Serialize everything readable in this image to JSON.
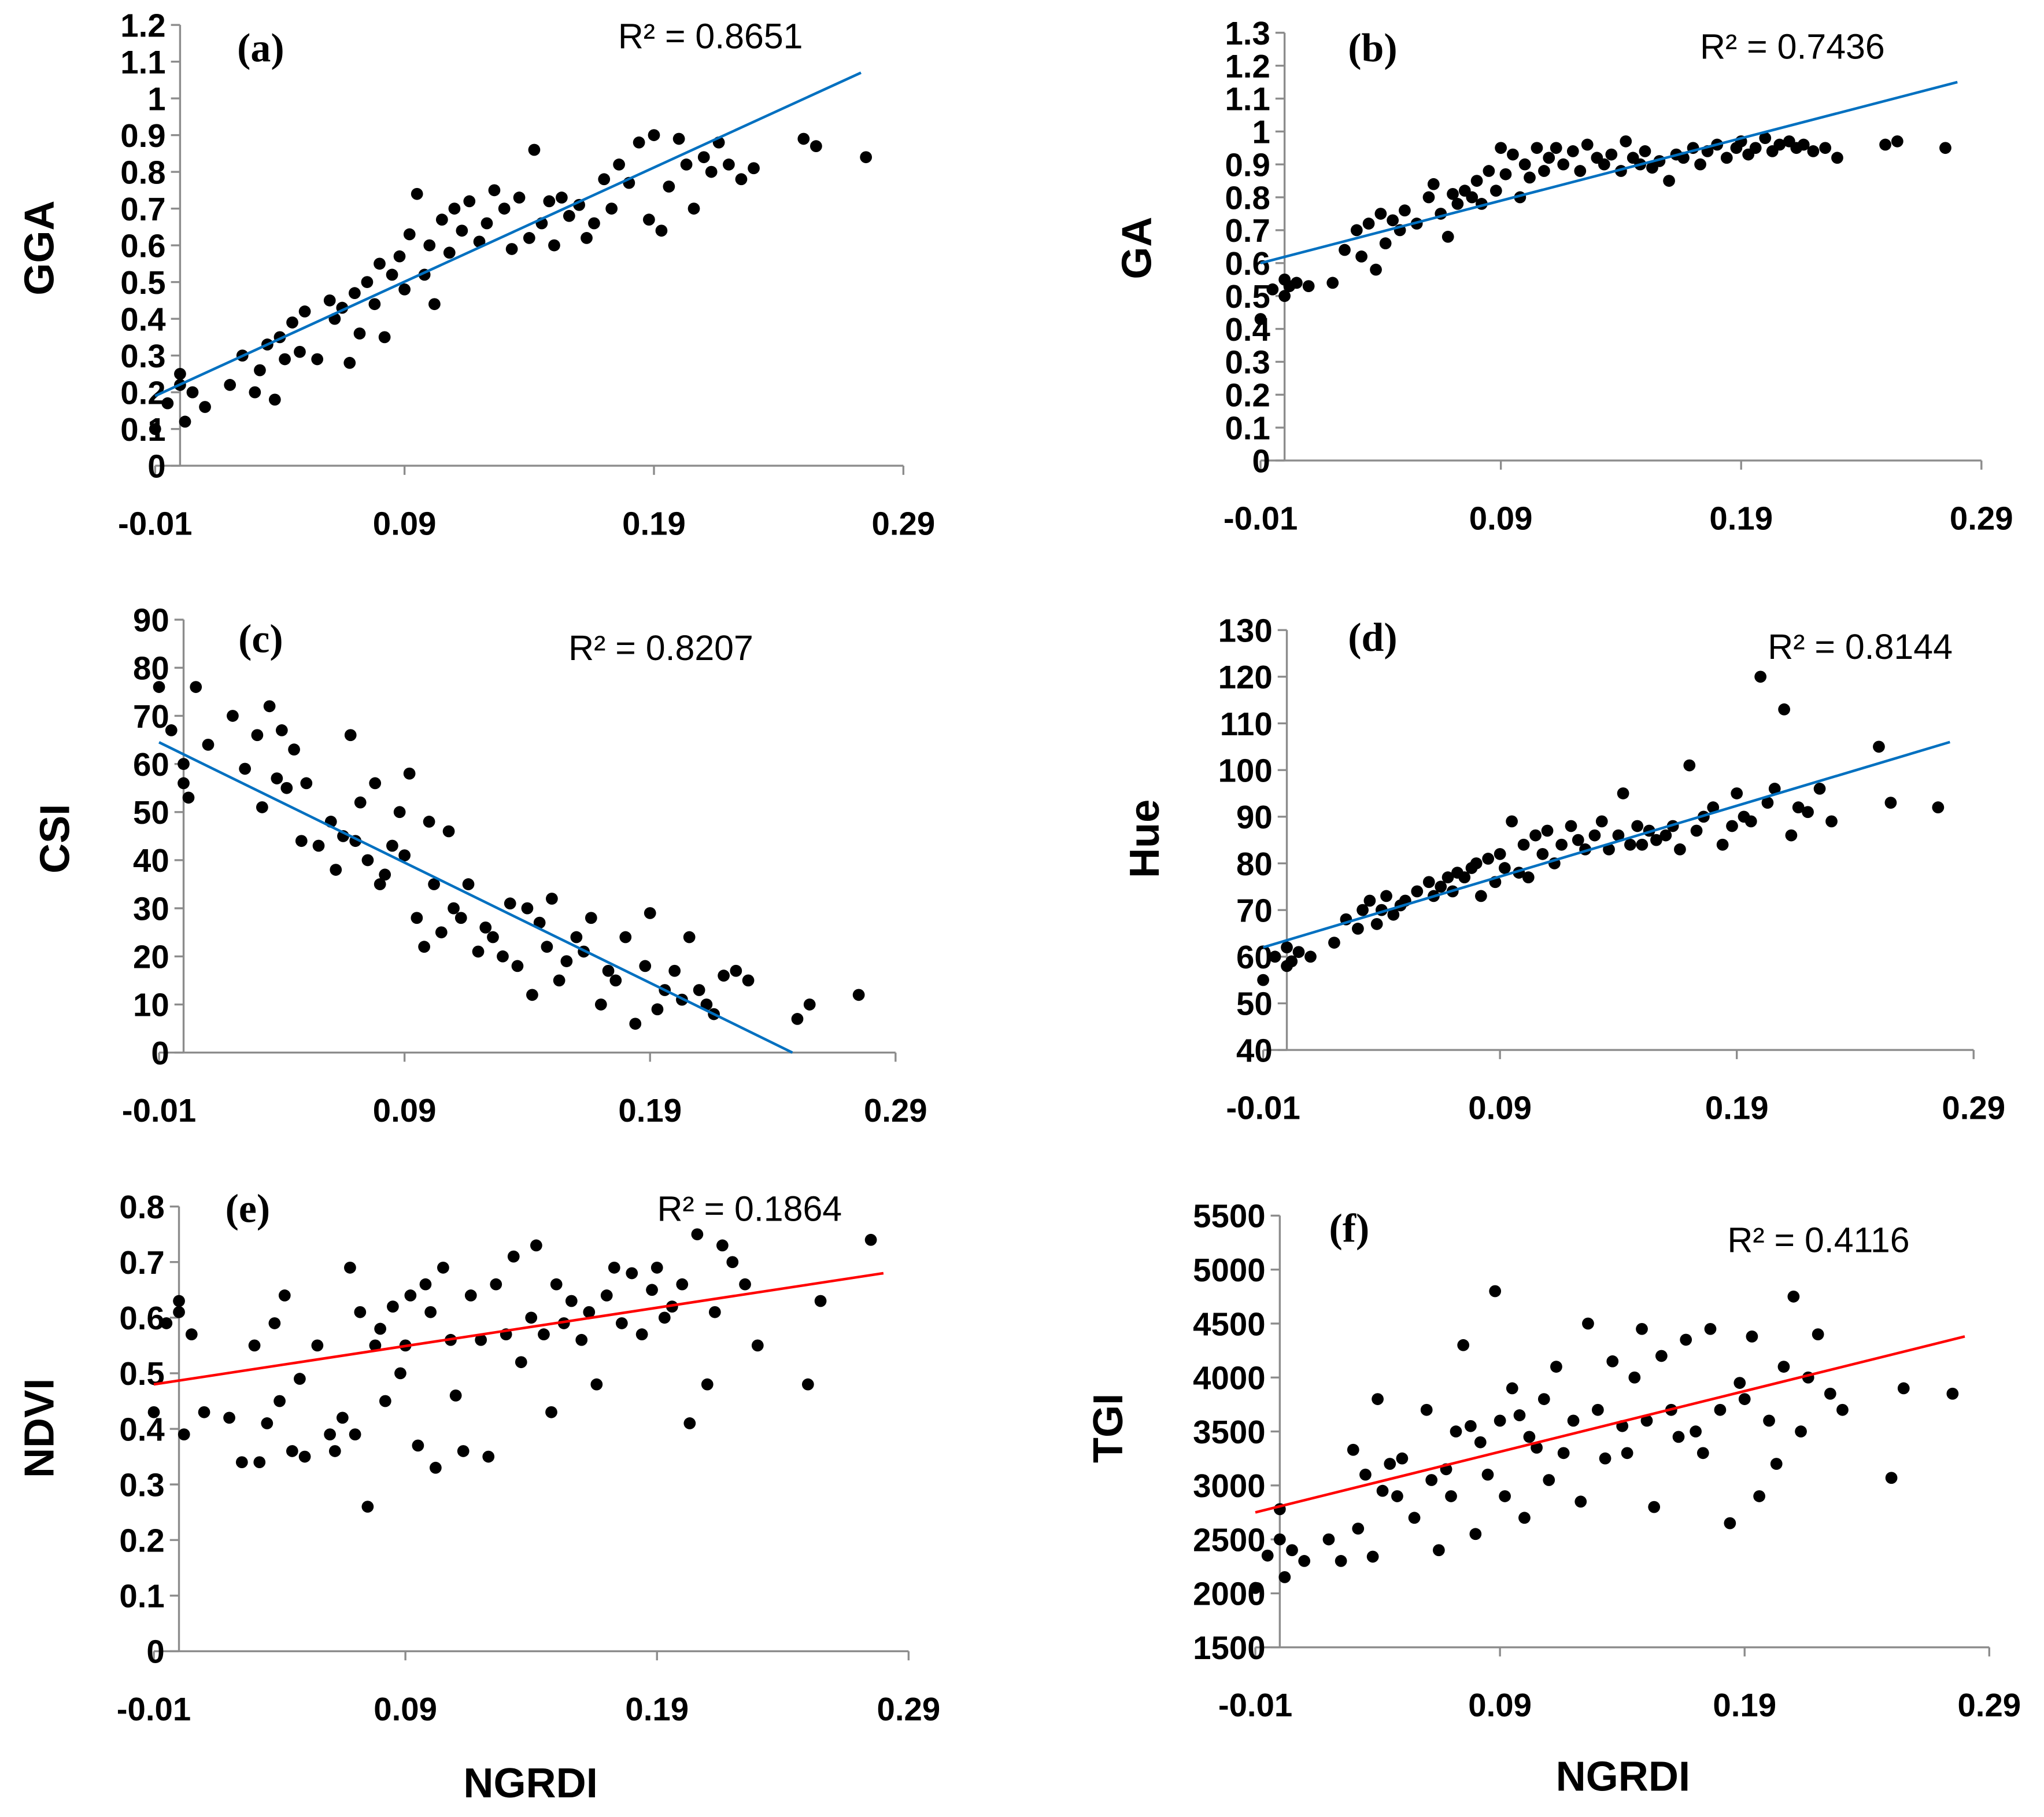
{
  "colors": {
    "points": "#000000",
    "blue_trend": "#0070C0",
    "red_trend": "#FF0000",
    "axis": "#8c8c8c"
  },
  "shared_x_label": "NGRDI",
  "ngrdi": [
    -0.01,
    -0.005,
    0.0,
    0.0,
    0.002,
    0.005,
    0.01,
    0.02,
    0.025,
    0.03,
    0.032,
    0.035,
    0.038,
    0.04,
    0.042,
    0.045,
    0.048,
    0.05,
    0.055,
    0.06,
    0.062,
    0.065,
    0.068,
    0.07,
    0.072,
    0.075,
    0.078,
    0.08,
    0.082,
    0.085,
    0.088,
    0.09,
    0.092,
    0.095,
    0.098,
    0.1,
    0.102,
    0.105,
    0.108,
    0.11,
    0.113,
    0.116,
    0.12,
    0.123,
    0.126,
    0.13,
    0.133,
    0.136,
    0.14,
    0.142,
    0.145,
    0.148,
    0.15,
    0.153,
    0.156,
    0.16,
    0.163,
    0.166,
    0.17,
    0.173,
    0.176,
    0.18,
    0.184,
    0.188,
    0.19,
    0.193,
    0.196,
    0.2,
    0.203,
    0.206,
    0.21,
    0.213,
    0.216,
    0.22,
    0.225,
    0.23,
    0.25,
    0.255,
    0.275
  ],
  "chart_data": [
    {
      "type": "scatter",
      "panel": "(a)",
      "ylabel": "GGA",
      "xlabel": "",
      "r2_label": "R² = 0.8651",
      "trend_color": "blue",
      "xlim": [
        -0.01,
        0.29
      ],
      "ylim": [
        0,
        1.2
      ],
      "xtick_values": [
        -0.01,
        0.09,
        0.19,
        0.29
      ],
      "xtick_labels": [
        "-0.01",
        "0.09",
        "0.19",
        "0.29"
      ],
      "ytick_values": [
        0,
        0.1,
        0.2,
        0.3,
        0.4,
        0.5,
        0.6,
        0.7,
        0.8,
        0.9,
        1,
        1.1,
        1.2
      ],
      "ytick_labels": [
        "0",
        "0.1",
        "0.2",
        "0.3",
        "0.4",
        "0.5",
        "0.6",
        "0.7",
        "0.8",
        "0.9",
        "1",
        "1.1",
        "1.2"
      ],
      "trend": [
        [
          -0.01,
          0.19
        ],
        [
          0.273,
          1.07
        ]
      ],
      "y": [
        0.1,
        0.17,
        0.22,
        0.25,
        0.12,
        0.2,
        0.16,
        0.22,
        0.3,
        0.2,
        0.26,
        0.33,
        0.18,
        0.35,
        0.29,
        0.39,
        0.31,
        0.42,
        0.29,
        0.45,
        0.4,
        0.43,
        0.28,
        0.47,
        0.36,
        0.5,
        0.44,
        0.55,
        0.35,
        0.52,
        0.57,
        0.48,
        0.63,
        0.74,
        0.52,
        0.6,
        0.44,
        0.67,
        0.58,
        0.7,
        0.64,
        0.72,
        0.61,
        0.66,
        0.75,
        0.7,
        0.59,
        0.73,
        0.62,
        0.86,
        0.66,
        0.72,
        0.6,
        0.73,
        0.68,
        0.71,
        0.62,
        0.66,
        0.78,
        0.7,
        0.82,
        0.77,
        0.88,
        0.67,
        0.9,
        0.64,
        0.76,
        0.89,
        0.82,
        0.7,
        0.84,
        0.8,
        0.88,
        0.82,
        0.78,
        0.81,
        0.89,
        0.87,
        0.84
      ]
    },
    {
      "type": "scatter",
      "panel": "(b)",
      "ylabel": "GA",
      "xlabel": "",
      "r2_label": "R² = 0.7436",
      "trend_color": "blue",
      "xlim": [
        -0.01,
        0.29
      ],
      "ylim": [
        0,
        1.3
      ],
      "xtick_values": [
        -0.01,
        0.09,
        0.19,
        0.29
      ],
      "xtick_labels": [
        "-0.01",
        "0.09",
        "0.19",
        "0.29"
      ],
      "ytick_values": [
        0,
        0.1,
        0.2,
        0.3,
        0.4,
        0.5,
        0.6,
        0.7,
        0.8,
        0.9,
        1,
        1.1,
        1.2,
        1.3
      ],
      "ytick_labels": [
        "0",
        "0.1",
        "0.2",
        "0.3",
        "0.4",
        "0.5",
        "0.6",
        "0.7",
        "0.8",
        "0.9",
        "1",
        "1.1",
        "1.2",
        "1.3"
      ],
      "trend": [
        [
          -0.01,
          0.6
        ],
        [
          0.28,
          1.15
        ]
      ],
      "y": [
        0.43,
        0.52,
        0.55,
        0.5,
        0.53,
        0.54,
        0.53,
        0.54,
        0.64,
        0.7,
        0.62,
        0.72,
        0.58,
        0.75,
        0.66,
        0.73,
        0.7,
        0.76,
        0.72,
        0.8,
        0.84,
        0.75,
        0.68,
        0.81,
        0.78,
        0.82,
        0.8,
        0.85,
        0.78,
        0.88,
        0.82,
        0.95,
        0.87,
        0.93,
        0.8,
        0.9,
        0.86,
        0.95,
        0.88,
        0.92,
        0.95,
        0.9,
        0.94,
        0.88,
        0.96,
        0.92,
        0.9,
        0.93,
        0.88,
        0.97,
        0.92,
        0.9,
        0.94,
        0.89,
        0.91,
        0.85,
        0.93,
        0.92,
        0.95,
        0.9,
        0.94,
        0.96,
        0.92,
        0.95,
        0.97,
        0.93,
        0.95,
        0.98,
        0.94,
        0.96,
        0.97,
        0.95,
        0.96,
        0.94,
        0.95,
        0.92,
        0.96,
        0.97,
        0.95
      ]
    },
    {
      "type": "scatter",
      "panel": "(c)",
      "ylabel": "CSI",
      "xlabel": "",
      "r2_label": "R² = 0.8207",
      "trend_color": "blue",
      "xlim": [
        -0.01,
        0.29
      ],
      "ylim": [
        0,
        90
      ],
      "xtick_values": [
        -0.01,
        0.09,
        0.19,
        0.29
      ],
      "xtick_labels": [
        "-0.01",
        "0.09",
        "0.19",
        "0.29"
      ],
      "ytick_values": [
        0,
        10,
        20,
        30,
        40,
        50,
        60,
        70,
        80,
        90
      ],
      "ytick_labels": [
        "0",
        "10",
        "20",
        "30",
        "40",
        "50",
        "60",
        "70",
        "80",
        "90"
      ],
      "trend": [
        [
          -0.01,
          64.5
        ],
        [
          0.248,
          0
        ]
      ],
      "y": [
        76,
        67,
        56,
        60,
        53,
        76,
        64,
        70,
        59,
        66,
        51,
        72,
        57,
        67,
        55,
        63,
        44,
        56,
        43,
        48,
        38,
        45,
        66,
        44,
        52,
        40,
        56,
        35,
        37,
        43,
        50,
        41,
        58,
        28,
        22,
        48,
        35,
        25,
        46,
        30,
        28,
        35,
        21,
        26,
        24,
        20,
        31,
        18,
        30,
        12,
        27,
        22,
        32,
        15,
        19,
        24,
        21,
        28,
        10,
        17,
        15,
        24,
        6,
        18,
        29,
        9,
        13,
        17,
        11,
        24,
        13,
        10,
        8,
        16,
        17,
        15,
        7,
        10,
        12
      ]
    },
    {
      "type": "scatter",
      "panel": "(d)",
      "ylabel": "Hue",
      "xlabel": "",
      "r2_label": "R² = 0.8144",
      "trend_color": "blue",
      "xlim": [
        -0.01,
        0.29
      ],
      "ylim": [
        40,
        130
      ],
      "xtick_values": [
        -0.01,
        0.09,
        0.19,
        0.29
      ],
      "xtick_labels": [
        "-0.01",
        "0.09",
        "0.19",
        "0.29"
      ],
      "ytick_values": [
        40,
        50,
        60,
        70,
        80,
        90,
        100,
        110,
        120,
        130
      ],
      "ytick_labels": [
        "40",
        "50",
        "60",
        "70",
        "80",
        "90",
        "100",
        "110",
        "120",
        "130"
      ],
      "trend": [
        [
          -0.01,
          62
        ],
        [
          0.28,
          106
        ]
      ],
      "y": [
        55,
        60,
        58,
        62,
        59,
        61,
        60,
        63,
        68,
        66,
        70,
        72,
        67,
        70,
        73,
        69,
        71,
        72,
        74,
        76,
        73,
        75,
        77,
        74,
        78,
        77,
        79,
        80,
        73,
        81,
        76,
        82,
        79,
        89,
        78,
        84,
        77,
        86,
        82,
        87,
        80,
        84,
        88,
        85,
        83,
        86,
        89,
        83,
        86,
        95,
        84,
        88,
        84,
        87,
        85,
        86,
        88,
        83,
        101,
        87,
        90,
        92,
        84,
        88,
        95,
        90,
        89,
        120,
        93,
        96,
        113,
        86,
        92,
        91,
        96,
        89,
        105,
        93,
        92
      ]
    },
    {
      "type": "scatter",
      "panel": "(e)",
      "ylabel": "NDVI",
      "xlabel": "NGRDI",
      "r2_label": "R² = 0.1864",
      "trend_color": "red",
      "xlim": [
        -0.01,
        0.29
      ],
      "ylim": [
        0,
        0.8
      ],
      "xtick_values": [
        -0.01,
        0.09,
        0.19,
        0.29
      ],
      "xtick_labels": [
        "-0.01",
        "0.09",
        "0.19",
        "0.29"
      ],
      "ytick_values": [
        0,
        0.1,
        0.2,
        0.3,
        0.4,
        0.5,
        0.6,
        0.7,
        0.8
      ],
      "ytick_labels": [
        "0",
        "0.1",
        "0.2",
        "0.3",
        "0.4",
        "0.5",
        "0.6",
        "0.7",
        "0.8"
      ],
      "trend": [
        [
          -0.01,
          0.48
        ],
        [
          0.28,
          0.68
        ]
      ],
      "y": [
        0.43,
        0.59,
        0.61,
        0.63,
        0.39,
        0.57,
        0.43,
        0.42,
        0.34,
        0.55,
        0.34,
        0.41,
        0.59,
        0.45,
        0.64,
        0.36,
        0.49,
        0.35,
        0.55,
        0.39,
        0.36,
        0.42,
        0.69,
        0.39,
        0.61,
        0.26,
        0.55,
        0.58,
        0.45,
        0.62,
        0.5,
        0.55,
        0.64,
        0.37,
        0.66,
        0.61,
        0.33,
        0.69,
        0.56,
        0.46,
        0.36,
        0.64,
        0.56,
        0.35,
        0.66,
        0.57,
        0.71,
        0.52,
        0.6,
        0.73,
        0.57,
        0.43,
        0.66,
        0.59,
        0.63,
        0.56,
        0.61,
        0.48,
        0.64,
        0.69,
        0.59,
        0.68,
        0.57,
        0.65,
        0.69,
        0.6,
        0.62,
        0.66,
        0.41,
        0.75,
        0.48,
        0.61,
        0.73,
        0.7,
        0.66,
        0.55,
        0.48,
        0.63,
        0.74
      ]
    },
    {
      "type": "scatter",
      "panel": "(f)",
      "ylabel": "TGI",
      "xlabel": "NGRDI",
      "r2_label": "R² = 0.4116",
      "trend_color": "red",
      "xlim": [
        -0.01,
        0.29
      ],
      "ylim": [
        1500,
        5500
      ],
      "xtick_values": [
        -0.01,
        0.09,
        0.19,
        0.29
      ],
      "xtick_labels": [
        "-0.01",
        "0.09",
        "0.19",
        "0.29"
      ],
      "ytick_values": [
        1500,
        2000,
        2500,
        3000,
        3500,
        4000,
        4500,
        5000,
        5500
      ],
      "ytick_labels": [
        "1500",
        "2000",
        "2500",
        "3000",
        "3500",
        "4000",
        "4500",
        "5000",
        "5500"
      ],
      "trend": [
        [
          -0.01,
          2750
        ],
        [
          0.28,
          4380
        ]
      ],
      "y": [
        2050,
        2350,
        2780,
        2500,
        2150,
        2400,
        2300,
        2500,
        2300,
        3330,
        2600,
        3100,
        2340,
        3800,
        2950,
        3200,
        2900,
        3250,
        2700,
        3700,
        3050,
        2400,
        3150,
        2900,
        3500,
        4300,
        3550,
        2550,
        3400,
        3100,
        4800,
        3600,
        2900,
        3900,
        3650,
        2700,
        3450,
        3350,
        3800,
        3050,
        4100,
        3300,
        3600,
        2850,
        4500,
        3700,
        3250,
        4150,
        3550,
        3300,
        4000,
        4450,
        3600,
        2800,
        4200,
        3700,
        3450,
        4350,
        3500,
        3300,
        4450,
        3700,
        2650,
        3950,
        3800,
        4380,
        2900,
        3600,
        3200,
        4100,
        4750,
        3500,
        4000,
        4400,
        3850,
        3700,
        3070,
        3900,
        3850
      ]
    }
  ]
}
